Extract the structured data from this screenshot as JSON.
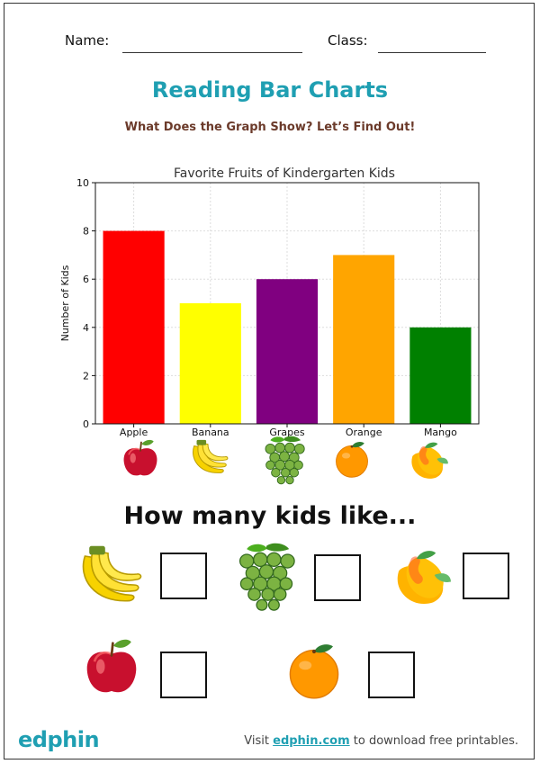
{
  "header": {
    "name_label": "Name:",
    "class_label": "Class:"
  },
  "title": "Reading Bar Charts",
  "subtitle": "What Does the Graph Show? Let’s Find Out!",
  "chart_data": {
    "type": "bar",
    "title": "Favorite Fruits of Kindergarten Kids",
    "xlabel": "",
    "ylabel": "Number of Kids",
    "categories": [
      "Apple",
      "Banana",
      "Grapes",
      "Orange",
      "Mango"
    ],
    "values": [
      8,
      5,
      6,
      7,
      4
    ],
    "colors": [
      "#ff0000",
      "#ffff00",
      "#800080",
      "#ffa500",
      "#008000"
    ],
    "ylim": [
      0,
      10
    ],
    "yticks": [
      "0",
      "2",
      "4",
      "6",
      "8",
      "10"
    ],
    "grid": true
  },
  "icons": {
    "apple": "apple-icon",
    "banana": "banana-icon",
    "grapes": "grapes-icon",
    "orange": "orange-icon",
    "mango": "mango-icon"
  },
  "question": "How many kids like...",
  "footer": {
    "logo": "edphin",
    "prefix": "Visit ",
    "link": "edphin.com",
    "suffix": " to download free printables."
  }
}
